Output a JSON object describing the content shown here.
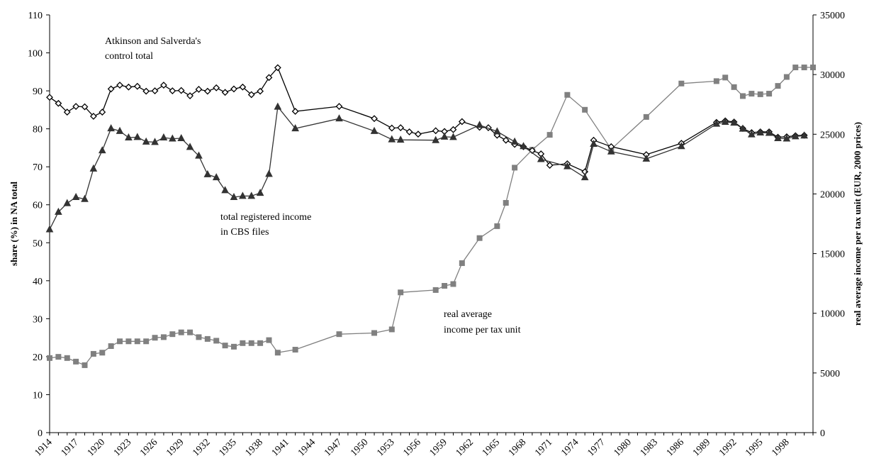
{
  "title": "",
  "chart_data": {
    "type": "line",
    "title": "",
    "ylabel_left": "share (%)  in NA total",
    "ylabel_right": "real average income per tax unit (EUR, 2000 prices)",
    "ylim_left": [
      0,
      110
    ],
    "ylim_right": [
      0,
      35000
    ],
    "xlim": [
      1914,
      2001
    ],
    "left_ticks": [
      0,
      10,
      20,
      30,
      40,
      50,
      60,
      70,
      80,
      90,
      100,
      110
    ],
    "right_ticks": [
      0,
      5000,
      10000,
      15000,
      20000,
      25000,
      30000,
      35000
    ],
    "x_tick_labels": [
      "1914",
      "1917",
      "1920",
      "1923",
      "1926",
      "1929",
      "1932",
      "1935",
      "1938",
      "1941",
      "1944",
      "1947",
      "1950",
      "1953",
      "1956",
      "1959",
      "1962",
      "1965",
      "1968",
      "1971",
      "1974",
      "1977",
      "1980",
      "1983",
      "1986",
      "1989",
      "1992",
      "1995",
      "1998"
    ],
    "grid": false,
    "series": [
      {
        "name": "Atkinson and Salverda's control total",
        "axis": "left",
        "marker": "diamond",
        "color": "#000000",
        "x": [
          1914,
          1915,
          1916,
          1917,
          1918,
          1919,
          1920,
          1921,
          1922,
          1923,
          1924,
          1925,
          1926,
          1927,
          1928,
          1929,
          1930,
          1931,
          1932,
          1933,
          1934,
          1935,
          1936,
          1937,
          1938,
          1939,
          1940,
          1942,
          1947,
          1951,
          1953,
          1954,
          1955,
          1956,
          1958,
          1959,
          1960,
          1961,
          1963,
          1964,
          1965,
          1966,
          1967,
          1968,
          1969,
          1970,
          1971,
          1973,
          1975,
          1976,
          1978,
          1982,
          1986,
          1990,
          1991,
          1992,
          1993,
          1994,
          1995,
          1996,
          1997,
          1998,
          1999,
          2000
        ],
        "values": [
          88.3,
          86.7,
          84.4,
          85.9,
          85.8,
          83.3,
          84.4,
          90.5,
          91.5,
          91.0,
          91.2,
          89.9,
          90.0,
          91.5,
          90.0,
          90.1,
          88.7,
          90.4,
          89.9,
          90.8,
          89.6,
          90.5,
          91.0,
          89.0,
          89.9,
          93.5,
          96.1,
          84.6,
          85.9,
          82.7,
          80.2,
          80.3,
          79.2,
          78.6,
          79.5,
          79.3,
          79.8,
          81.9,
          80.4,
          80.3,
          78.3,
          77.0,
          75.9,
          75.3,
          74.3,
          73.4,
          70.4,
          70.8,
          68.7,
          77.0,
          75.3,
          73.2,
          76.2,
          81.7,
          82.1,
          81.8,
          80.1,
          79.0,
          79.2,
          79.2,
          77.8,
          77.9,
          78.2,
          78.3
        ]
      },
      {
        "name": "total registered income in CBS files",
        "axis": "left",
        "marker": "triangle",
        "color": "#333333",
        "x": [
          1914,
          1915,
          1916,
          1917,
          1918,
          1919,
          1920,
          1921,
          1922,
          1923,
          1924,
          1925,
          1926,
          1927,
          1928,
          1929,
          1930,
          1931,
          1932,
          1933,
          1934,
          1935,
          1936,
          1937,
          1938,
          1939,
          1940,
          1942,
          1947,
          1951,
          1953,
          1954,
          1958,
          1959,
          1960,
          1963,
          1965,
          1967,
          1968,
          1970,
          1973,
          1975,
          1976,
          1978,
          1982,
          1986,
          1990,
          1991,
          1992,
          1993,
          1994,
          1995,
          1996,
          1997,
          1998,
          1999,
          2000
        ],
        "values": [
          53.5,
          58.1,
          60.4,
          62.0,
          61.5,
          69.5,
          74.3,
          80.1,
          79.4,
          77.7,
          77.8,
          76.6,
          76.5,
          77.7,
          77.4,
          77.5,
          75.2,
          72.9,
          68.0,
          67.2,
          63.8,
          62.0,
          62.3,
          62.3,
          63.1,
          68.1,
          85.8,
          80.1,
          82.7,
          79.4,
          77.2,
          77.1,
          77.0,
          77.9,
          77.8,
          81.0,
          79.3,
          76.6,
          75.4,
          72.0,
          70.1,
          67.2,
          76.0,
          74.0,
          72.1,
          75.4,
          81.3,
          81.8,
          81.6,
          80.0,
          78.5,
          79.0,
          78.9,
          77.5,
          77.4,
          78.0,
          78.2
        ]
      },
      {
        "name": "real average income per tax unit",
        "axis": "right",
        "marker": "square",
        "color": "#808080",
        "x": [
          1914,
          1915,
          1916,
          1917,
          1918,
          1919,
          1920,
          1921,
          1922,
          1923,
          1924,
          1925,
          1926,
          1927,
          1928,
          1929,
          1930,
          1931,
          1932,
          1933,
          1934,
          1935,
          1936,
          1937,
          1938,
          1939,
          1940,
          1942,
          1947,
          1951,
          1953,
          1954,
          1958,
          1959,
          1960,
          1961,
          1963,
          1965,
          1966,
          1967,
          1969,
          1971,
          1973,
          1975,
          1978,
          1982,
          1986,
          1990,
          1991,
          1992,
          1993,
          1994,
          1995,
          1996,
          1997,
          1998,
          1999,
          2000,
          2001
        ],
        "values": [
          6250,
          6350,
          6250,
          5950,
          5650,
          6600,
          6700,
          7250,
          7650,
          7650,
          7650,
          7650,
          7950,
          8000,
          8250,
          8400,
          8400,
          8000,
          7850,
          7700,
          7300,
          7200,
          7500,
          7500,
          7500,
          7750,
          6700,
          6950,
          8250,
          8350,
          8650,
          11750,
          11950,
          12300,
          12450,
          14200,
          16300,
          17300,
          19250,
          22200,
          23700,
          24950,
          28300,
          27050,
          23750,
          26450,
          29250,
          29450,
          29750,
          28950,
          28200,
          28400,
          28350,
          28400,
          29050,
          29800,
          30600,
          30600,
          30600
        ]
      }
    ],
    "annotations": [
      {
        "text_lines": [
          "Atkinson and Salverda's",
          "control total"
        ]
      },
      {
        "text_lines": [
          "total registered income",
          "in CBS files"
        ]
      },
      {
        "text_lines": [
          "real average",
          "income per tax unit"
        ]
      }
    ]
  }
}
